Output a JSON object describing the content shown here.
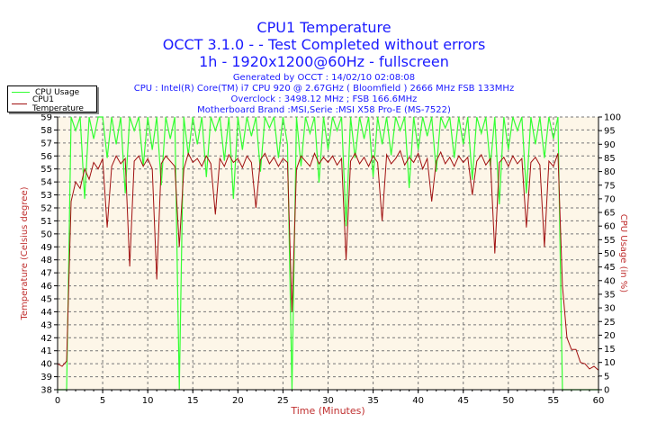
{
  "header": {
    "title": "CPU1 Temperature",
    "subtitle1": "OCCT 3.1.0 -  - Test Completed without errors",
    "subtitle2": "1h - 1920x1200@60Hz - fullscreen",
    "info": [
      "Generated by OCCT : 14/02/10 02:08:08",
      "CPU : Intel(R) Core(TM) i7 CPU 920 @ 2.67GHz ( Bloomfield ) 2666 MHz FSB 133MHz",
      "Overclock : 3498.12 MHz ; FSB 166.6MHz",
      "Motherboard Brand :MSI,Serie :MSI X58 Pro-E (MS-7522)"
    ]
  },
  "chart_data": {
    "type": "line",
    "title": "CPU1 Temperature",
    "xlabel": "Time (Minutes)",
    "ylabel_left": "Temperature (Celsius degree)",
    "ylabel_right": "CPU Usage (in %)",
    "xlim": [
      0,
      60
    ],
    "ylim_left": [
      38,
      59
    ],
    "ylim_right": [
      0,
      100
    ],
    "xticks": [
      0,
      5,
      10,
      15,
      20,
      25,
      30,
      35,
      40,
      45,
      50,
      55,
      60
    ],
    "yticks_left": [
      38,
      39,
      40,
      41,
      42,
      43,
      44,
      45,
      46,
      47,
      48,
      49,
      50,
      51,
      52,
      53,
      54,
      55,
      56,
      57,
      58,
      59
    ],
    "yticks_right": [
      0,
      5,
      10,
      15,
      20,
      25,
      30,
      35,
      40,
      45,
      50,
      55,
      60,
      65,
      70,
      75,
      80,
      85,
      90,
      95,
      100
    ],
    "grid": true,
    "legend_position": "top-left",
    "colors": {
      "usage": "#33ff33",
      "temperature": "#a01010",
      "plot_bg": "#fdf6e8",
      "header": "#1a1aff",
      "axis_label": "#c03030"
    },
    "x": [
      0,
      0.5,
      1,
      1.5,
      2,
      2.5,
      3,
      3.5,
      4,
      4.5,
      5,
      5.5,
      6,
      6.5,
      7,
      7.5,
      8,
      8.5,
      9,
      9.5,
      10,
      10.5,
      11,
      11.5,
      12,
      12.5,
      13,
      13.5,
      14,
      14.5,
      15,
      15.5,
      16,
      16.5,
      17,
      17.5,
      18,
      18.5,
      19,
      19.5,
      20,
      20.5,
      21,
      21.5,
      22,
      22.5,
      23,
      23.5,
      24,
      24.5,
      25,
      25.5,
      26,
      26.5,
      27,
      27.5,
      28,
      28.5,
      29,
      29.5,
      30,
      30.5,
      31,
      31.5,
      32,
      32.5,
      33,
      33.5,
      34,
      34.5,
      35,
      35.5,
      36,
      36.5,
      37,
      37.5,
      38,
      38.5,
      39,
      39.5,
      40,
      40.5,
      41,
      41.5,
      42,
      42.5,
      43,
      43.5,
      44,
      44.5,
      45,
      45.5,
      46,
      46.5,
      47,
      47.5,
      48,
      48.5,
      49,
      49.5,
      50,
      50.5,
      51,
      51.5,
      52,
      52.5,
      53,
      53.5,
      54,
      54.5,
      55,
      55.5,
      56,
      56.5,
      57,
      57.5,
      58,
      58.5,
      59,
      59.5,
      60
    ],
    "series": [
      {
        "name": "CPU Usage",
        "axis": "right",
        "values": [
          0,
          0,
          0,
          100,
          95,
          100,
          70,
          100,
          92,
          100,
          100,
          85,
          100,
          90,
          100,
          72,
          100,
          95,
          100,
          82,
          100,
          88,
          100,
          75,
          100,
          92,
          100,
          0,
          100,
          86,
          100,
          90,
          100,
          78,
          100,
          95,
          100,
          84,
          100,
          70,
          100,
          88,
          100,
          93,
          100,
          80,
          100,
          96,
          100,
          85,
          100,
          90,
          0,
          100,
          82,
          100,
          94,
          100,
          76,
          100,
          88,
          100,
          95,
          100,
          60,
          100,
          85,
          100,
          92,
          100,
          78,
          100,
          90,
          100,
          86,
          100,
          95,
          100,
          74,
          100,
          88,
          100,
          93,
          100,
          80,
          100,
          96,
          100,
          85,
          100,
          90,
          100,
          77,
          100,
          94,
          100,
          82,
          100,
          68,
          100,
          88,
          100,
          95,
          100,
          72,
          100,
          90,
          100,
          85,
          100,
          92,
          100,
          0,
          0,
          0,
          0,
          0,
          0,
          0,
          0,
          0
        ]
      },
      {
        "name": "CPU1 Temperature",
        "axis": "left",
        "values": [
          40.0,
          39.8,
          40.2,
          52.5,
          54.0,
          53.5,
          55.0,
          54.2,
          55.5,
          55.0,
          55.8,
          50.5,
          55.2,
          56.0,
          55.4,
          55.8,
          47.5,
          55.6,
          56.0,
          55.2,
          55.8,
          55.0,
          46.5,
          55.4,
          56.0,
          55.6,
          55.2,
          49.0,
          55.0,
          56.2,
          55.5,
          55.8,
          55.2,
          56.0,
          55.4,
          51.5,
          55.8,
          55.2,
          56.1,
          55.5,
          55.8,
          55.1,
          56.0,
          55.5,
          52.0,
          55.7,
          56.2,
          55.4,
          55.9,
          55.2,
          55.8,
          55.5,
          44.0,
          55.0,
          56.0,
          55.6,
          55.2,
          56.2,
          55.4,
          55.9,
          55.5,
          56.0,
          55.3,
          55.8,
          48.0,
          55.6,
          56.2,
          55.4,
          55.9,
          55.2,
          56.0,
          55.5,
          51.0,
          56.1,
          55.4,
          55.8,
          56.4,
          55.3,
          55.9,
          55.5,
          56.2,
          55.0,
          55.8,
          52.5,
          55.6,
          56.3,
          55.4,
          55.9,
          55.2,
          56.0,
          55.5,
          55.9,
          53.0,
          55.6,
          56.1,
          55.3,
          55.8,
          48.5,
          55.5,
          55.9,
          55.2,
          56.0,
          55.4,
          55.8,
          50.5,
          55.5,
          55.9,
          55.3,
          49.0,
          55.6,
          55.2,
          56.2,
          46.0,
          42.0,
          41.1,
          41.1,
          40.1,
          40.0,
          39.6,
          39.8,
          39.5
        ]
      }
    ]
  }
}
